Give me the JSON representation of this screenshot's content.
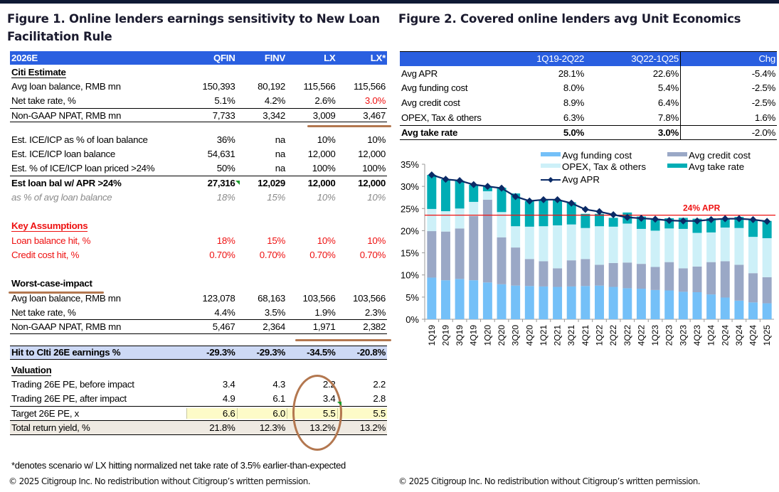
{
  "figure1": {
    "title": "Figure 1. Online lenders earnings sensitivity to New Loan Facilitation Rule",
    "header": {
      "label": "2026E",
      "columns": [
        "QFIN",
        "FINV",
        "LX",
        "LX*"
      ]
    },
    "citi_estimate": {
      "heading": "Citi Estimate",
      "rows": [
        {
          "label": "Avg loan balance, RMB mn",
          "values": [
            "150,393",
            "80,192",
            "115,566",
            "115,566"
          ]
        },
        {
          "label": "Net take rate, %",
          "values": [
            "5.1%",
            "4.2%",
            "2.6%",
            "3.0%"
          ]
        },
        {
          "label": "Non-GAAP NPAT, RMB mn",
          "values": [
            "7,733",
            "3,342",
            "3,009",
            "3,467"
          ]
        }
      ]
    },
    "ice_icp": {
      "rows": [
        {
          "label": "Est. ICE/ICP as % of loan balance",
          "values": [
            "36%",
            "na",
            "10%",
            "10%"
          ]
        },
        {
          "label": "Est. ICE/ICP loan balance",
          "values": [
            "54,631",
            "na",
            "12,000",
            "12,000"
          ]
        },
        {
          "label": "Est. % of ICE/ICP loan priced >24%",
          "values": [
            "50%",
            "na",
            "100%",
            "100%"
          ]
        }
      ],
      "total": {
        "label": "Est loan bal w/ APR >24%",
        "values": [
          "27,316",
          "12,029",
          "12,000",
          "12,000"
        ]
      },
      "pct": {
        "label": "as % of avg loan balance",
        "values": [
          "18%",
          "15%",
          "10%",
          "10%"
        ]
      }
    },
    "key_assumptions": {
      "heading": "Key Assumptions",
      "rows": [
        {
          "label": "Loan balance hit, %",
          "values": [
            "18%",
            "15%",
            "10%",
            "10%"
          ]
        },
        {
          "label": "Credit cost hit, %",
          "values": [
            "0.70%",
            "0.70%",
            "0.70%",
            "0.70%"
          ]
        }
      ]
    },
    "worst_case": {
      "heading": "Worst-case-impact",
      "rows": [
        {
          "label": "Avg loan balance, RMB mn",
          "values": [
            "123,078",
            "68,163",
            "103,566",
            "103,566"
          ]
        },
        {
          "label": "Net take rate, %",
          "values": [
            "4.4%",
            "3.5%",
            "1.9%",
            "2.3%"
          ]
        },
        {
          "label": "Non-GAAP NPAT, RMB mn",
          "values": [
            "5,467",
            "2,364",
            "1,971",
            "2,382"
          ]
        }
      ]
    },
    "hit": {
      "label": "Hit to CIti 26E earnings %",
      "values": [
        "-29.3%",
        "-29.3%",
        "-34.5%",
        "-20.8%"
      ]
    },
    "valuation": {
      "heading": "Valuation",
      "rows": [
        {
          "label": "Trading 26E PE, before impact",
          "values": [
            "3.4",
            "4.3",
            "2.2",
            "2.2"
          ]
        },
        {
          "label": "Trading 26E PE, after impact",
          "values": [
            "4.9",
            "6.1",
            "3.4",
            "2.8"
          ]
        }
      ],
      "target": {
        "label": "Target 26E PE, x",
        "values": [
          "6.6",
          "6.0",
          "5.5",
          "5.5"
        ]
      },
      "return": {
        "label": "Total return yield, %",
        "values": [
          "21.8%",
          "12.3%",
          "13.2%",
          "13.2%"
        ]
      }
    },
    "note": "*denotes scenario w/ LX hitting normalized net take rate of 3.5% earlier-than-expected",
    "copyright": "© 2025 Citigroup Inc. No redistribution without Citigroup’s written permission."
  },
  "figure2": {
    "title": "Figure 2. Covered online lenders avg Unit Economics",
    "table": {
      "columns": [
        "",
        "1Q19-2Q22",
        "3Q22-1Q25",
        "Chg"
      ],
      "rows": [
        {
          "label": "Avg APR",
          "values": [
            "28.1%",
            "22.6%",
            "-5.4%"
          ]
        },
        {
          "label": "Avg funding cost",
          "values": [
            "8.0%",
            "5.4%",
            "-2.5%"
          ]
        },
        {
          "label": "Avg credit cost",
          "values": [
            "8.9%",
            "6.4%",
            "-2.5%"
          ]
        },
        {
          "label": "OPEX, Tax & others",
          "values": [
            "6.3%",
            "7.8%",
            "1.6%"
          ]
        },
        {
          "label": "Avg take rate",
          "values": [
            "5.0%",
            "3.0%",
            "-2.0%"
          ]
        }
      ]
    },
    "copyright": "© 2025 Citigroup Inc. No redistribution without Citigroup’s written permission."
  },
  "chart_data": {
    "type": "bar",
    "stacked": true,
    "title": "",
    "xlabel": "",
    "ylabel": "",
    "ylim": [
      0,
      35
    ],
    "yticks": [
      "0%",
      "5%",
      "10%",
      "15%",
      "20%",
      "25%",
      "30%",
      "35%"
    ],
    "grid": false,
    "legend_position": "top-right",
    "categories": [
      "1Q19",
      "2Q19",
      "3Q19",
      "4Q19",
      "1Q20",
      "2Q20",
      "3Q20",
      "4Q20",
      "1Q21",
      "2Q21",
      "3Q21",
      "4Q21",
      "1Q22",
      "2Q22",
      "3Q22",
      "4Q22",
      "1Q23",
      "2Q23",
      "3Q23",
      "4Q23",
      "1Q24",
      "2Q24",
      "3Q24",
      "4Q24",
      "1Q25"
    ],
    "series": [
      {
        "name": "Avg funding cost",
        "color": "#74c0f8",
        "values": [
          9.4,
          8.8,
          9.1,
          8.8,
          8.3,
          7.9,
          7.6,
          7.5,
          7.4,
          7.3,
          7.4,
          7.5,
          7.6,
          7.3,
          7.0,
          6.9,
          6.6,
          6.5,
          6.2,
          6.1,
          5.6,
          4.9,
          4.2,
          3.8,
          3.6
        ]
      },
      {
        "name": "Avg credit cost",
        "color": "#9aa8c6",
        "values": [
          10.5,
          11.0,
          11.4,
          14.5,
          18.7,
          10.6,
          8.6,
          6.1,
          5.7,
          4.2,
          5.9,
          6.1,
          4.7,
          5.4,
          5.8,
          5.6,
          5.2,
          6.4,
          5.3,
          5.8,
          7.3,
          8.2,
          8.1,
          6.6,
          5.9
        ]
      },
      {
        "name": "OPEX, Tax & others",
        "color": "#cdf0f8",
        "values": [
          5.0,
          4.6,
          4.5,
          3.2,
          1.9,
          5.7,
          4.8,
          7.3,
          7.9,
          9.7,
          8.1,
          7.0,
          8.7,
          8.2,
          8.8,
          7.9,
          8.2,
          7.6,
          8.9,
          7.6,
          6.7,
          7.6,
          8.3,
          8.2,
          8.8
        ]
      },
      {
        "name": "Avg take rate",
        "color": "#00adb5",
        "values": [
          7.7,
          7.2,
          6.3,
          3.9,
          1.1,
          5.5,
          7.4,
          5.8,
          6.0,
          5.7,
          5.0,
          3.2,
          2.8,
          2.0,
          2.5,
          2.8,
          2.7,
          2.3,
          2.5,
          3.2,
          3.2,
          2.0,
          2.5,
          3.9,
          3.9
        ]
      }
    ],
    "line": {
      "name": "Avg APR",
      "color": "#0a2a66",
      "values": [
        32.6,
        31.6,
        31.3,
        30.4,
        30.0,
        29.6,
        27.7,
        26.7,
        27.0,
        27.0,
        26.2,
        24.8,
        24.3,
        23.6,
        23.0,
        22.8,
        22.6,
        22.3,
        22.2,
        22.2,
        22.5,
        22.7,
        22.7,
        22.5,
        22.1
      ]
    },
    "reference_line": {
      "value": 23.5,
      "label": "24% APR",
      "color": "#ee1111"
    }
  }
}
